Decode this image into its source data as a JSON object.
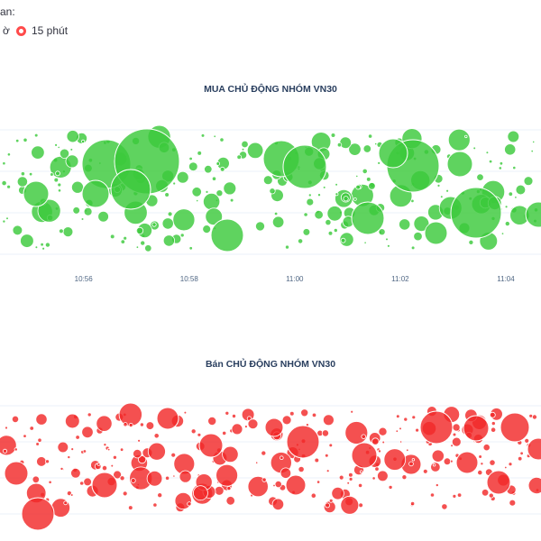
{
  "controls": {
    "label": "an:",
    "options": [
      {
        "label": "ờ",
        "selected": false
      },
      {
        "label": "15 phút",
        "selected": true
      }
    ]
  },
  "chart_data": [
    {
      "type": "scatter",
      "title": "MUA CHỦ ĐỘNG NHÓM VN30",
      "color": "#3cc93c",
      "x_tick_labels": [
        "10:56",
        "10:58",
        "11:00",
        "11:02",
        "11:04"
      ],
      "x_ticks": [
        "10:56",
        "10:58",
        "11:00",
        "11:02",
        "11:04"
      ],
      "xlim": [
        "10:54:25",
        "11:04:40"
      ],
      "legend": "none",
      "grid": true
    },
    {
      "type": "scatter",
      "title": "Bán CHỦ ĐỘNG NHÓM VN30",
      "color": "#f22a2a",
      "x_tick_labels": [],
      "xlim": [
        "10:54:25",
        "11:04:40"
      ],
      "legend": "none",
      "grid": true
    }
  ]
}
